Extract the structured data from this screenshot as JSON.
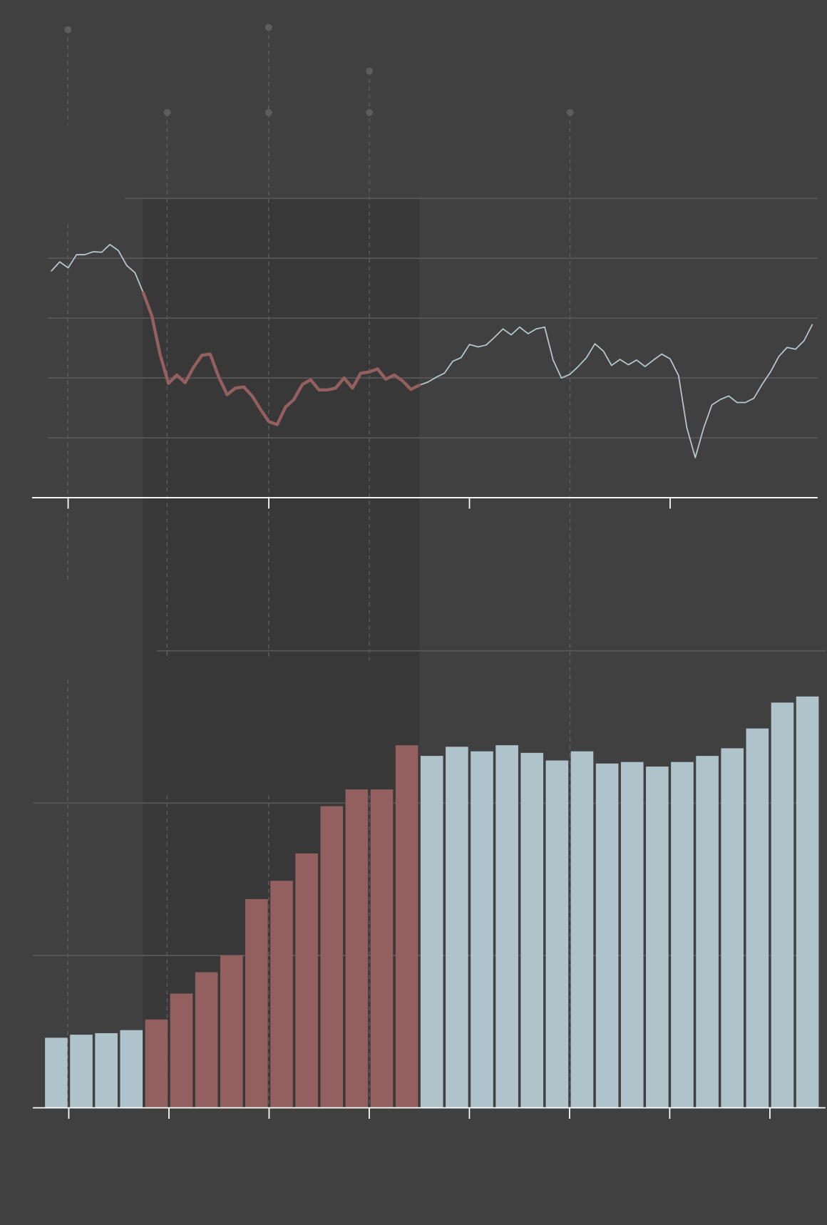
{
  "chart_data": [
    {
      "type": "line",
      "x": [
        -0.083,
        -0.042,
        0,
        0.042,
        0.083,
        0.125,
        0.167,
        0.208,
        0.25,
        0.292,
        0.333,
        0.375,
        0.417,
        0.458,
        0.5,
        0.542,
        0.583,
        0.625,
        0.667,
        0.708,
        0.75,
        0.792,
        0.833,
        0.875,
        0.917,
        0.958,
        1,
        1.042,
        1.083,
        1.125,
        1.167,
        1.208,
        1.25,
        1.292,
        1.333,
        1.375,
        1.417,
        1.458,
        1.5,
        1.542,
        1.583,
        1.625,
        1.667,
        1.708,
        1.75,
        1.792,
        1.833,
        1.875,
        1.917,
        1.958,
        2,
        2.042,
        2.083,
        2.125,
        2.167,
        2.208,
        2.25,
        2.292,
        2.333,
        2.375,
        2.417,
        2.458,
        2.5,
        2.542,
        2.583,
        2.625,
        2.667,
        2.708,
        2.75,
        2.792,
        2.833,
        2.875,
        2.917,
        2.958,
        3,
        3.042,
        3.083,
        3.125,
        3.167,
        3.208,
        3.25,
        3.292,
        3.333,
        3.375,
        3.417,
        3.458,
        3.5,
        3.542,
        3.583,
        3.625,
        3.667,
        3.708
      ],
      "series": [
        {
          "color": "#b7c9ce",
          "values": [
            3.79,
            3.94,
            3.84,
            4.06,
            4.06,
            4.11,
            4.1,
            4.23,
            4.13,
            3.88,
            3.76,
            3.42,
            null,
            null,
            null,
            null,
            null,
            null,
            null,
            null,
            null,
            null,
            null,
            null,
            null,
            null,
            null,
            null,
            null,
            null,
            null,
            null,
            null,
            null,
            null,
            null,
            null,
            null,
            null,
            null,
            null,
            null,
            null,
            null,
            1.88,
            1.93,
            2.01,
            2.08,
            2.28,
            2.34,
            2.56,
            2.52,
            2.55,
            2.68,
            2.82,
            2.72,
            2.85,
            2.74,
            2.82,
            2.85,
            2.3,
            2.0,
            2.06,
            2.19,
            2.34,
            2.57,
            2.45,
            2.21,
            2.31,
            2.22,
            2.3,
            2.19,
            2.3,
            2.4,
            2.32,
            2.04,
            1.17,
            0.67,
            1.16,
            1.55,
            1.64,
            1.7,
            1.59,
            1.59,
            1.66,
            1.89,
            2.1,
            2.36,
            2.51,
            2.48,
            2.62,
            2.89
          ]
        },
        {
          "color": "#935f5f",
          "values": [
            null,
            null,
            null,
            null,
            null,
            null,
            null,
            null,
            null,
            null,
            null,
            3.42,
            3.04,
            2.4,
            1.91,
            2.05,
            1.92,
            2.18,
            2.38,
            2.4,
            2.02,
            1.72,
            1.83,
            1.85,
            1.7,
            1.48,
            1.27,
            1.22,
            1.51,
            1.64,
            1.89,
            1.97,
            1.8,
            1.8,
            1.83,
            2.0,
            1.83,
            2.08,
            2.1,
            2.15,
            1.98,
            2.05,
            1.95,
            1.81,
            1.88,
            null,
            null,
            null,
            null,
            null,
            null,
            null,
            null,
            null,
            null,
            null,
            null,
            null,
            null,
            null,
            null,
            null,
            null,
            null,
            null,
            null,
            null,
            null,
            null,
            null,
            null,
            null,
            null,
            null,
            null,
            null,
            null,
            null,
            null,
            null,
            null,
            null,
            null,
            null,
            null,
            null,
            null,
            null,
            null,
            null,
            null,
            null
          ]
        }
      ],
      "xlim": [
        -0.18,
        3.735
      ],
      "xticks": [
        0,
        1,
        2,
        3
      ],
      "ylim": [
        0,
        5
      ],
      "yticks": [
        0,
        1,
        2,
        3,
        4,
        5
      ],
      "grid": true
    },
    {
      "type": "bar",
      "x": [
        0.5,
        1.5,
        2.5,
        3.5,
        4.5,
        5.5,
        6.5,
        7.5,
        8.5,
        9.5,
        10.5,
        11.5,
        12.5,
        13.5,
        14.5,
        15.5,
        16.5,
        17.5,
        18.5,
        19.5,
        20.5,
        21.5,
        22.5,
        23.5,
        24.5,
        25.5,
        26.5,
        27.5,
        28.5,
        29.5,
        30.5
      ],
      "values": [
        0.46,
        0.48,
        0.49,
        0.51,
        0.58,
        0.75,
        0.89,
        1.0,
        1.37,
        1.49,
        1.67,
        1.98,
        2.09,
        2.09,
        2.38,
        2.31,
        2.37,
        2.34,
        2.38,
        2.33,
        2.28,
        2.34,
        2.26,
        2.27,
        2.24,
        2.27,
        2.31,
        2.36,
        2.49,
        2.66,
        2.7
      ],
      "colors": [
        "#afc3ca",
        "#afc3ca",
        "#afc3ca",
        "#afc3ca",
        "#935f5f",
        "#935f5f",
        "#935f5f",
        "#935f5f",
        "#935f5f",
        "#935f5f",
        "#935f5f",
        "#935f5f",
        "#935f5f",
        "#935f5f",
        "#935f5f",
        "#afc3ca",
        "#afc3ca",
        "#afc3ca",
        "#afc3ca",
        "#afc3ca",
        "#afc3ca",
        "#afc3ca",
        "#afc3ca",
        "#afc3ca",
        "#afc3ca",
        "#afc3ca",
        "#afc3ca",
        "#afc3ca",
        "#afc3ca",
        "#afc3ca",
        "#afc3ca"
      ],
      "xlim": [
        0,
        31
      ],
      "xticks": [
        1,
        5,
        9,
        13,
        17,
        21,
        25,
        29
      ],
      "ylim": [
        0,
        3
      ],
      "yticks": [
        0,
        1,
        2,
        3
      ],
      "grid": true
    }
  ]
}
